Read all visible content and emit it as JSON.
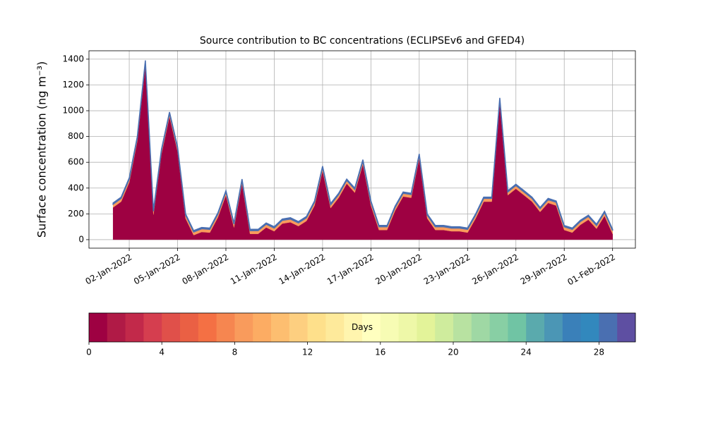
{
  "chart_data": {
    "type": "stackedarea",
    "title": "Source contribution to BC concentrations (ECLIPSEv6 and GFED4)",
    "y_label": "Surface concentration (ng m⁻³)",
    "x": [
      "2022-01-01 00:00",
      "2022-01-01 12:00",
      "2022-01-02 00:00",
      "2022-01-02 12:00",
      "2022-01-03 00:00",
      "2022-01-03 12:00",
      "2022-01-04 00:00",
      "2022-01-04 12:00",
      "2022-01-05 00:00",
      "2022-01-05 12:00",
      "2022-01-06 00:00",
      "2022-01-06 12:00",
      "2022-01-07 00:00",
      "2022-01-07 12:00",
      "2022-01-08 00:00",
      "2022-01-08 12:00",
      "2022-01-09 00:00",
      "2022-01-09 12:00",
      "2022-01-10 00:00",
      "2022-01-10 12:00",
      "2022-01-11 00:00",
      "2022-01-11 12:00",
      "2022-01-12 00:00",
      "2022-01-12 12:00",
      "2022-01-13 00:00",
      "2022-01-13 12:00",
      "2022-01-14 00:00",
      "2022-01-14 12:00",
      "2022-01-15 00:00",
      "2022-01-15 12:00",
      "2022-01-16 00:00",
      "2022-01-16 12:00",
      "2022-01-17 00:00",
      "2022-01-17 12:00",
      "2022-01-18 00:00",
      "2022-01-18 12:00",
      "2022-01-19 00:00",
      "2022-01-19 12:00",
      "2022-01-20 00:00",
      "2022-01-20 12:00",
      "2022-01-21 00:00",
      "2022-01-21 12:00",
      "2022-01-22 00:00",
      "2022-01-22 12:00",
      "2022-01-23 00:00",
      "2022-01-23 12:00",
      "2022-01-24 00:00",
      "2022-01-24 12:00",
      "2022-01-25 00:00",
      "2022-01-25 12:00",
      "2022-01-26 00:00",
      "2022-01-26 12:00",
      "2022-01-27 00:00",
      "2022-01-27 12:00",
      "2022-01-28 00:00",
      "2022-01-28 12:00",
      "2022-01-29 00:00",
      "2022-01-29 12:00",
      "2022-01-30 00:00",
      "2022-01-30 12:00",
      "2022-01-31 00:00",
      "2022-01-31 12:00",
      "2022-02-01 00:00"
    ],
    "series": [
      {
        "color": "#9e0142",
        "values": [
          250,
          295,
          445,
          765,
          1355,
          195,
          665,
          955,
          685,
          165,
          35,
          60,
          55,
          173,
          345,
          95,
          435,
          45,
          45,
          95,
          65,
          125,
          135,
          105,
          145,
          265,
          535,
          245,
          325,
          435,
          365,
          585,
          265,
          75,
          75,
          225,
          335,
          325,
          630,
          165,
          75,
          75,
          65,
          65,
          55,
          165,
          295,
          295,
          1065,
          345,
          395,
          345,
          295,
          215,
          285,
          265,
          75,
          55,
          115,
          155,
          85,
          185,
          45
        ]
      },
      {
        "color": "#f99b5c",
        "values": [
          25,
          25,
          25,
          25,
          25,
          25,
          25,
          25,
          25,
          25,
          25,
          25,
          25,
          25,
          25,
          25,
          25,
          25,
          25,
          25,
          25,
          25,
          25,
          25,
          25,
          25,
          25,
          25,
          25,
          25,
          25,
          25,
          25,
          25,
          25,
          25,
          25,
          25,
          25,
          25,
          25,
          25,
          25,
          25,
          25,
          25,
          25,
          25,
          25,
          25,
          25,
          25,
          25,
          25,
          25,
          25,
          25,
          25,
          25,
          25,
          25,
          25,
          25
        ]
      },
      {
        "color": "#4a6fb1",
        "values": [
          10,
          10,
          10,
          10,
          10,
          10,
          10,
          10,
          10,
          10,
          10,
          10,
          10,
          10,
          10,
          10,
          10,
          10,
          10,
          10,
          10,
          10,
          10,
          10,
          10,
          10,
          10,
          10,
          10,
          10,
          10,
          10,
          10,
          10,
          10,
          10,
          10,
          10,
          10,
          10,
          10,
          10,
          10,
          10,
          10,
          10,
          10,
          10,
          10,
          10,
          10,
          10,
          10,
          10,
          10,
          10,
          10,
          10,
          10,
          10,
          10,
          10,
          10
        ]
      }
    ],
    "xlim": [
      "2021-12-30 12:00",
      "2022-02-02 10:00"
    ],
    "xticks": [
      {
        "value": "2022-01-02 00:00",
        "label": "02-Jan-2022"
      },
      {
        "value": "2022-01-05 00:00",
        "label": "05-Jan-2022"
      },
      {
        "value": "2022-01-08 00:00",
        "label": "08-Jan-2022"
      },
      {
        "value": "2022-01-11 00:00",
        "label": "11-Jan-2022"
      },
      {
        "value": "2022-01-14 00:00",
        "label": "14-Jan-2022"
      },
      {
        "value": "2022-01-17 00:00",
        "label": "17-Jan-2022"
      },
      {
        "value": "2022-01-20 00:00",
        "label": "20-Jan-2022"
      },
      {
        "value": "2022-01-23 00:00",
        "label": "23-Jan-2022"
      },
      {
        "value": "2022-01-26 00:00",
        "label": "26-Jan-2022"
      },
      {
        "value": "2022-01-29 00:00",
        "label": "29-Jan-2022"
      },
      {
        "value": "2022-02-01 00:00",
        "label": "01-Feb-2022"
      }
    ],
    "ylim": [
      -66,
      1465
    ],
    "yticks": [
      0,
      200,
      400,
      600,
      800,
      1000,
      1200,
      1400
    ],
    "grid": true,
    "colorbar": {
      "label": "Days",
      "lim": [
        0,
        30
      ],
      "ticks": [
        0,
        4,
        8,
        12,
        16,
        20,
        24,
        28
      ],
      "colors": [
        "#9e0142",
        "#b01a46",
        "#c2294a",
        "#d53e4f",
        "#e0504a",
        "#ea6044",
        "#f47044",
        "#f68650",
        "#f99b5c",
        "#fcac63",
        "#fdbe70",
        "#fdcf80",
        "#fee08b",
        "#feea9b",
        "#fff5ae",
        "#ffffbf",
        "#f7fcb4",
        "#eef8a8",
        "#e3f399",
        "#cfec9d",
        "#b8e2a1",
        "#9fd8a4",
        "#88cfa4",
        "#70c4a4",
        "#5aaaad",
        "#4b96b5",
        "#3a80b9",
        "#3288bd",
        "#4a6fb1",
        "#5e4fa2"
      ]
    }
  }
}
